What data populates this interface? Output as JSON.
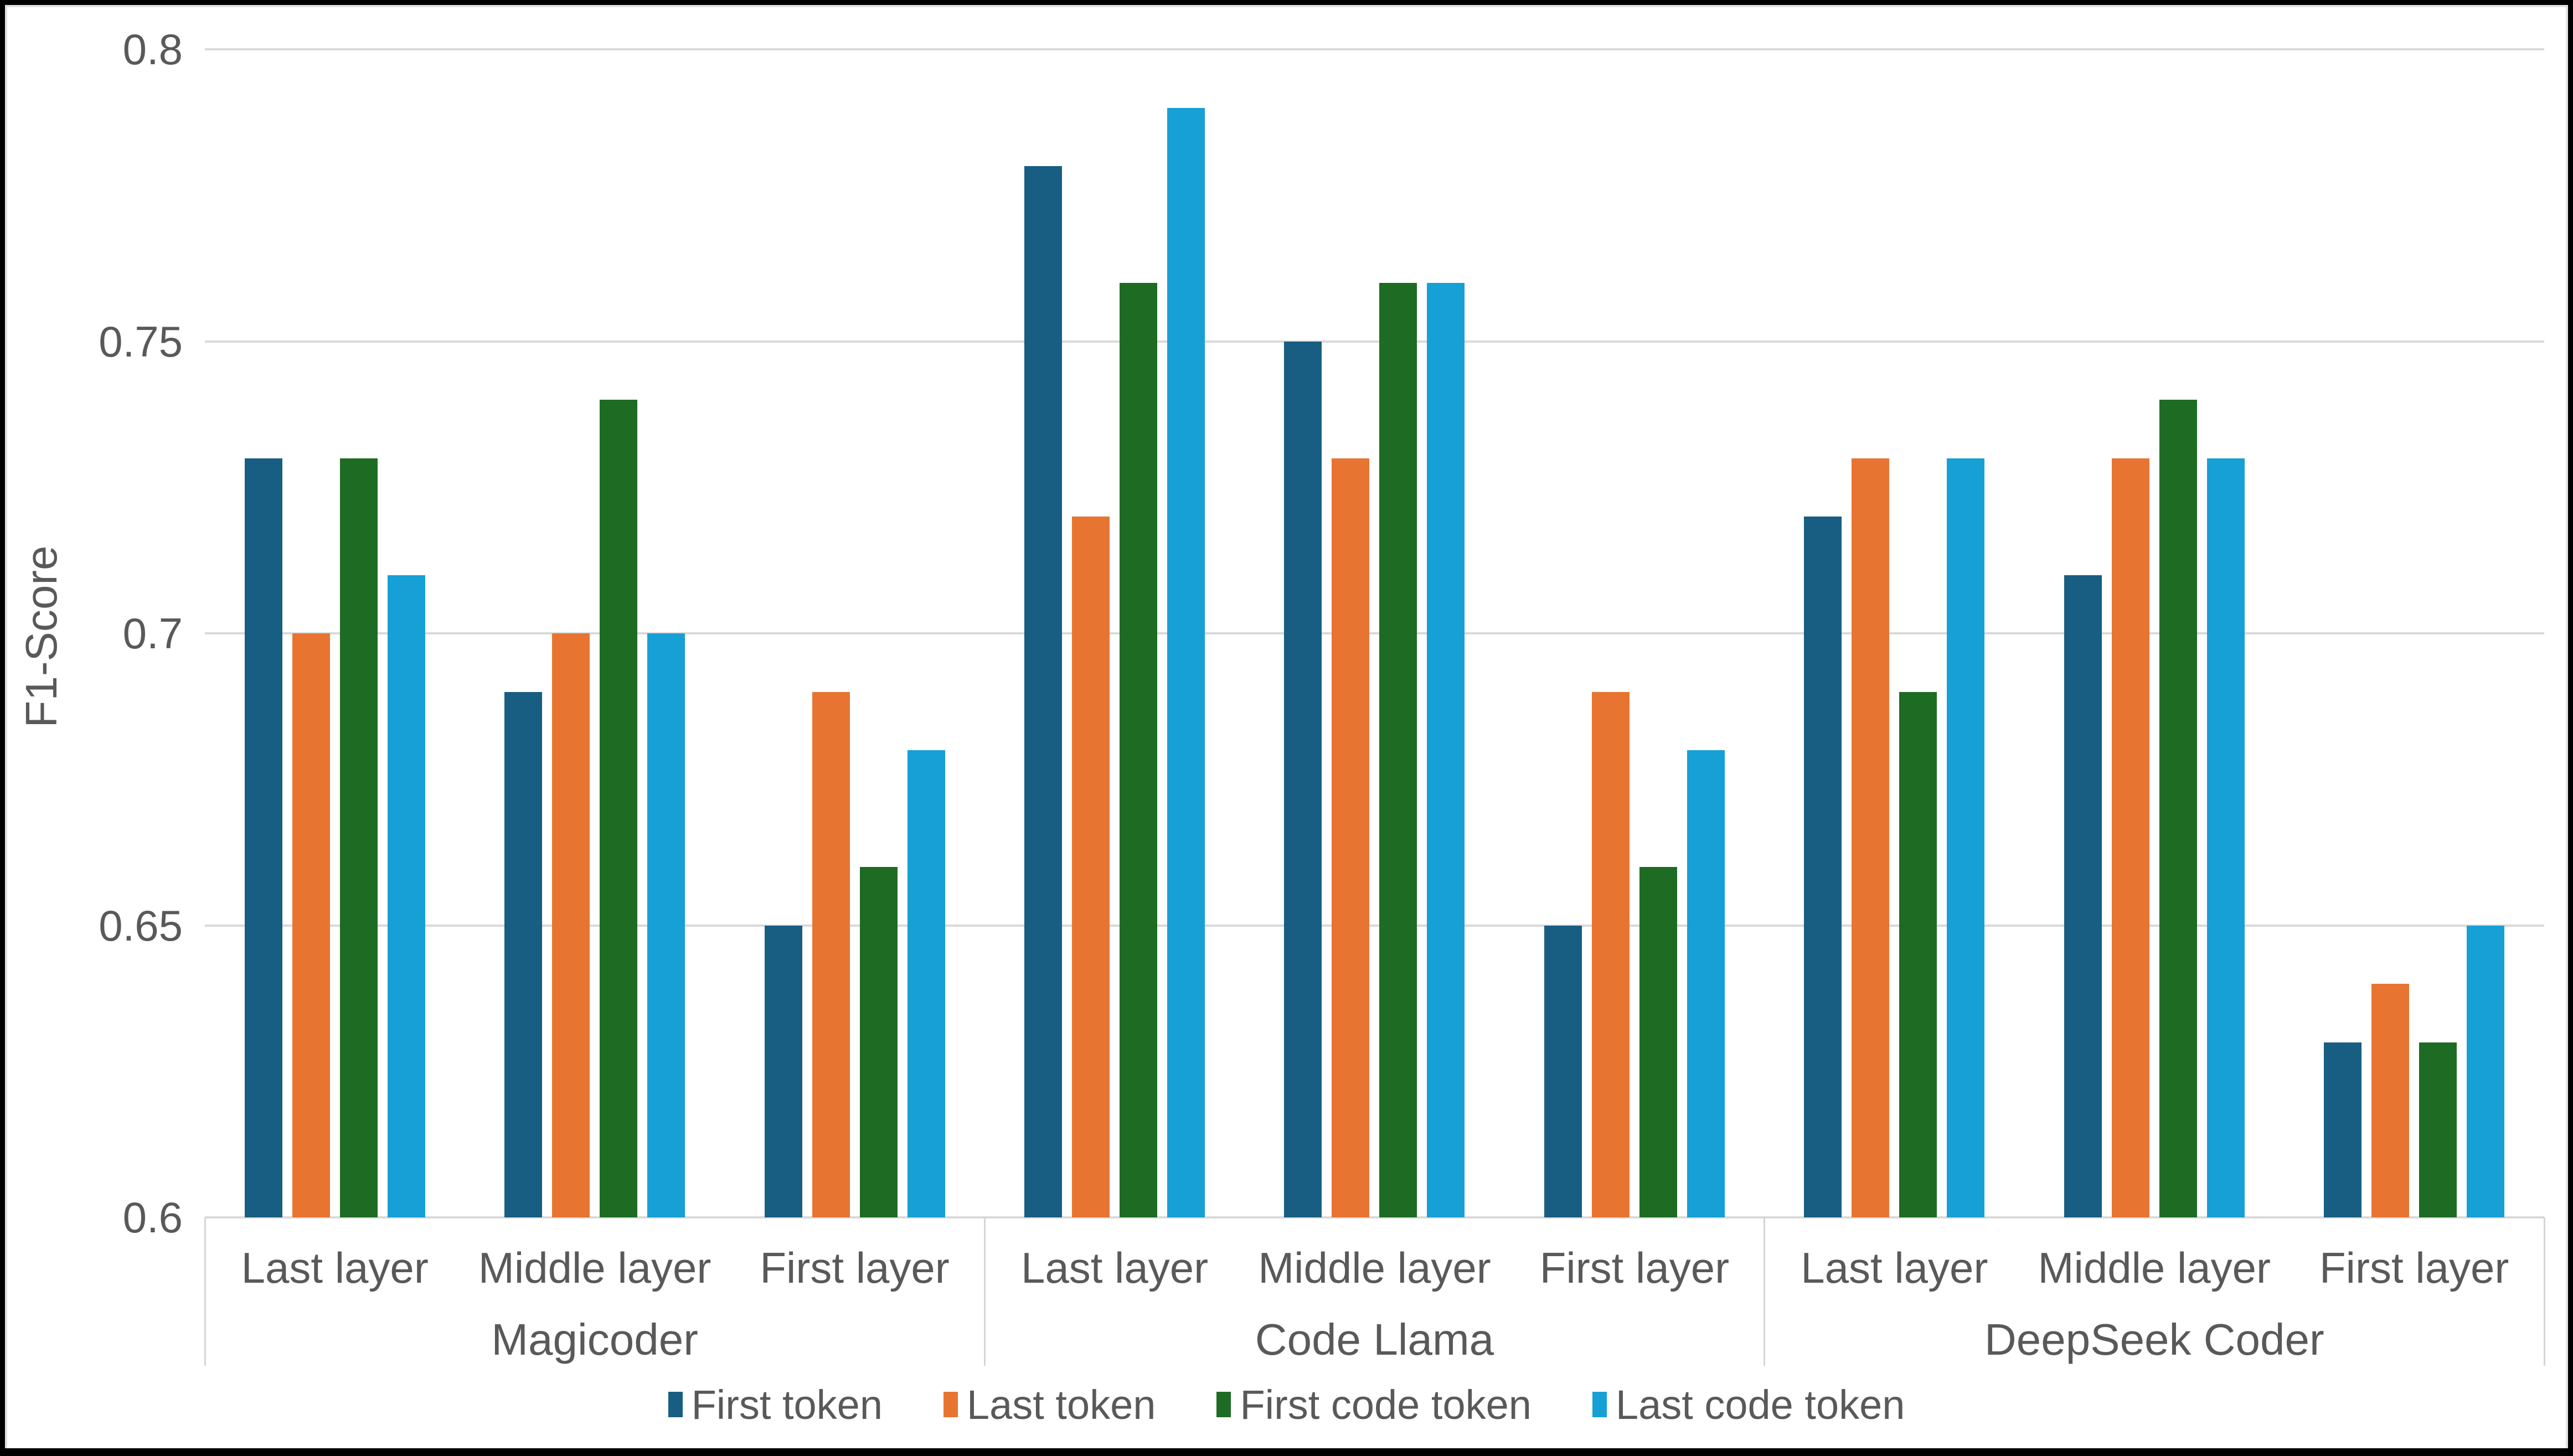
{
  "figure": {
    "background_color": "#FFFFFF",
    "frame_color": "#000000",
    "gridline_color": "#D9D9D9",
    "text_color": "#595959"
  },
  "chart_data": {
    "type": "bar",
    "title": "",
    "xlabel": "",
    "ylabel": "F1-Score",
    "ylim": [
      0.6,
      0.8
    ],
    "grid": "horizontal",
    "legend_position": "bottom",
    "yticks": [
      {
        "value": 0.8,
        "label": "0.8"
      },
      {
        "value": 0.75,
        "label": "0.75"
      },
      {
        "value": 0.7,
        "label": "0.7"
      },
      {
        "value": 0.65,
        "label": "0.65"
      },
      {
        "value": 0.6,
        "label": "0.6"
      }
    ],
    "group_labels": [
      "Magicoder",
      "Code Llama",
      "DeepSeek Coder"
    ],
    "subgroup_labels": [
      "Last layer",
      "Middle layer",
      "First layer"
    ],
    "series": [
      {
        "name": "First token",
        "color": "#175E82",
        "values": [
          0.73,
          0.69,
          0.65,
          0.78,
          0.75,
          0.65,
          0.72,
          0.71,
          0.63
        ]
      },
      {
        "name": "Last token",
        "color": "#E87431",
        "values": [
          0.7,
          0.7,
          0.69,
          0.72,
          0.73,
          0.69,
          0.73,
          0.73,
          0.64
        ]
      },
      {
        "name": "First code token",
        "color": "#1E6B24",
        "values": [
          0.73,
          0.74,
          0.66,
          0.76,
          0.76,
          0.66,
          0.69,
          0.74,
          0.63
        ]
      },
      {
        "name": "Last code token",
        "color": "#16A0D6",
        "values": [
          0.71,
          0.7,
          0.68,
          0.79,
          0.76,
          0.68,
          0.73,
          0.73,
          0.65
        ]
      }
    ]
  }
}
